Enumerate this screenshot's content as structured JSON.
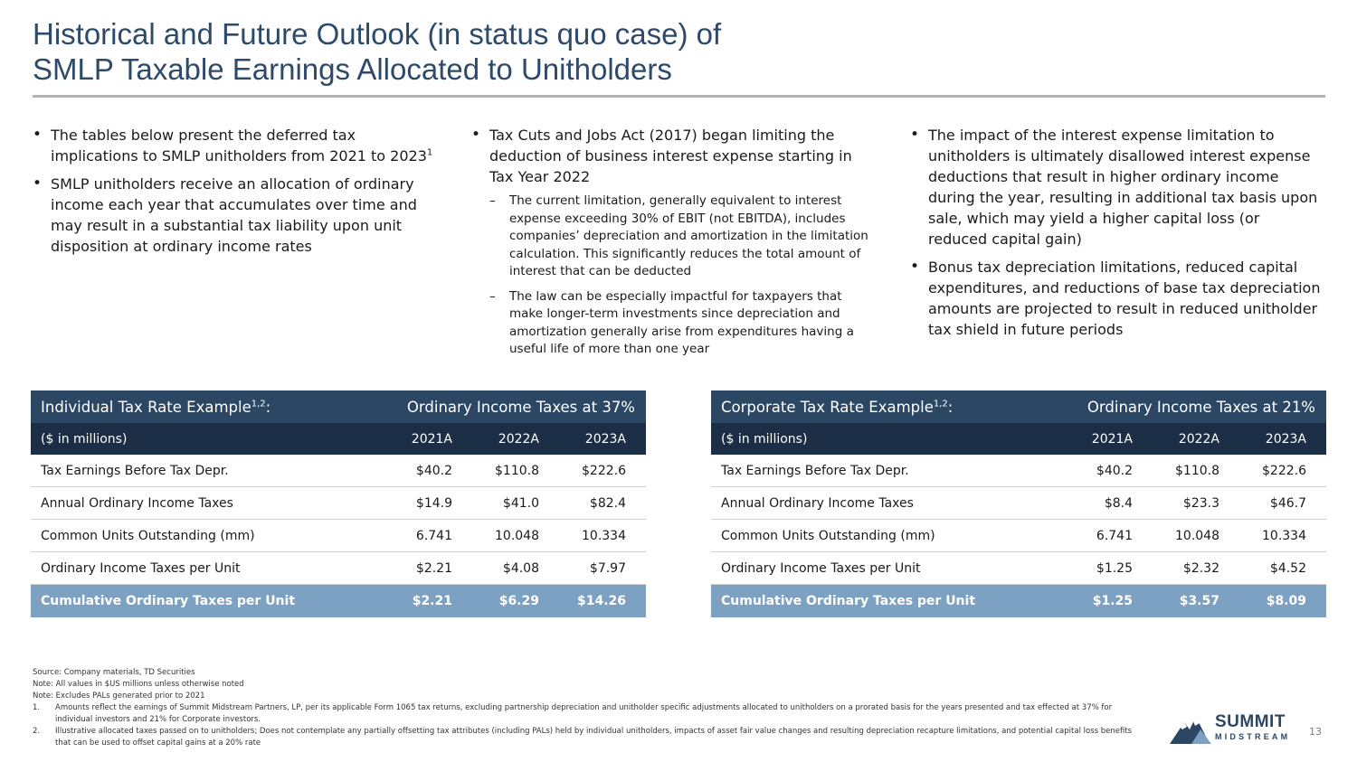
{
  "title": {
    "line1": "Historical and Future Outlook (in status quo case) of",
    "line2": "SMLP Taxable Earnings Allocated to Unitholders"
  },
  "columns": {
    "left": {
      "bullet1": "The tables below present the deferred tax implications to SMLP unitholders from 2021 to 2023",
      "bullet1_sup": "1",
      "bullet2": "SMLP unitholders receive an allocation of ordinary income each year that accumulates over time and may result in a substantial tax liability upon unit disposition at ordinary income rates"
    },
    "middle": {
      "bullet1": "Tax Cuts and Jobs Act (2017) began limiting the deduction of business interest expense starting in Tax Year 2022",
      "sub1": "The current limitation, generally equivalent to interest expense exceeding 30% of EBIT (not EBITDA), includes companies’ depreciation and amortization in the limitation calculation. This significantly reduces the total amount of interest that can be deducted",
      "sub2": "The law can be especially impactful for taxpayers that make longer-term investments since depreciation and amortization generally arise from expenditures having a useful life of more than one year"
    },
    "right": {
      "bullet1": "The impact of the interest expense limitation to unitholders is ultimately disallowed interest expense deductions that result in higher ordinary income during the year, resulting in additional tax basis upon sale, which may yield a higher capital loss (or reduced capital gain)",
      "bullet2": "Bonus tax depreciation limitations, reduced capital expenditures, and reductions of base tax depreciation amounts are projected to result in reduced unitholder tax shield in future periods"
    }
  },
  "tables": {
    "individual": {
      "title": "Individual Tax Rate Example",
      "title_sup": "1,2",
      "title_suffix": ":",
      "rate_label": "Ordinary Income Taxes at 37%",
      "units_label": "($ in millions)",
      "years": [
        "2021A",
        "2022A",
        "2023A"
      ],
      "rows": [
        {
          "label": "Tax Earnings Before Tax Depr.",
          "values": [
            "$40.2",
            "$110.8",
            "$222.6"
          ]
        },
        {
          "label": "Annual Ordinary Income Taxes",
          "values": [
            "$14.9",
            "$41.0",
            "$82.4"
          ]
        },
        {
          "label": "Common Units Outstanding (mm)",
          "values": [
            "6.741",
            "10.048",
            "10.334"
          ]
        },
        {
          "label": "Ordinary Income Taxes per Unit",
          "values": [
            "$2.21",
            "$4.08",
            "$7.97"
          ]
        }
      ],
      "total": {
        "label": "Cumulative Ordinary Taxes per Unit",
        "values": [
          "$2.21",
          "$6.29",
          "$14.26"
        ]
      }
    },
    "corporate": {
      "title": "Corporate Tax Rate Example",
      "title_sup": "1,2",
      "title_suffix": ":",
      "rate_label": "Ordinary Income Taxes at 21%",
      "units_label": "($ in millions)",
      "years": [
        "2021A",
        "2022A",
        "2023A"
      ],
      "rows": [
        {
          "label": "Tax Earnings Before Tax Depr.",
          "values": [
            "$40.2",
            "$110.8",
            "$222.6"
          ]
        },
        {
          "label": "Annual Ordinary Income Taxes",
          "values": [
            "$8.4",
            "$23.3",
            "$46.7"
          ]
        },
        {
          "label": "Common Units Outstanding (mm)",
          "values": [
            "6.741",
            "10.048",
            "10.334"
          ]
        },
        {
          "label": "Ordinary Income Taxes per Unit",
          "values": [
            "$1.25",
            "$2.32",
            "$4.52"
          ]
        }
      ],
      "total": {
        "label": "Cumulative Ordinary Taxes per Unit",
        "values": [
          "$1.25",
          "$3.57",
          "$8.09"
        ]
      }
    }
  },
  "notes": {
    "source": "Source: Company materials, TD Securities",
    "note1": "Note: All values in $US millions unless otherwise noted",
    "note2": "Note: Excludes PALs generated prior to 2021",
    "fn1_num": "1.",
    "fn1": "Amounts reflect the earnings of Summit Midstream Partners, LP, per its applicable Form 1065 tax returns, excluding partnership depreciation and unitholder specific adjustments allocated to unitholders on a prorated basis for the years presented and tax effected at 37% for individual investors and 21% for Corporate investors.",
    "fn2_num": "2.",
    "fn2": "Illustrative allocated taxes passed on to unitholders; Does not contemplate any partially offsetting tax attributes (including PALs) held by individual unitholders, impacts of asset fair value changes and resulting depreciation recapture limitations, and potential capital loss benefits that can be used to offset capital gains at a 20% rate"
  },
  "logo": {
    "line1": "SUMMIT",
    "line2": "MIDSTREAM",
    "icon": "mountain-icon"
  },
  "page_number": "13",
  "colors": {
    "title": "#2d4a6b",
    "header": "#2c4763",
    "subheader": "#1b2e45",
    "total": "#7da1c2"
  }
}
